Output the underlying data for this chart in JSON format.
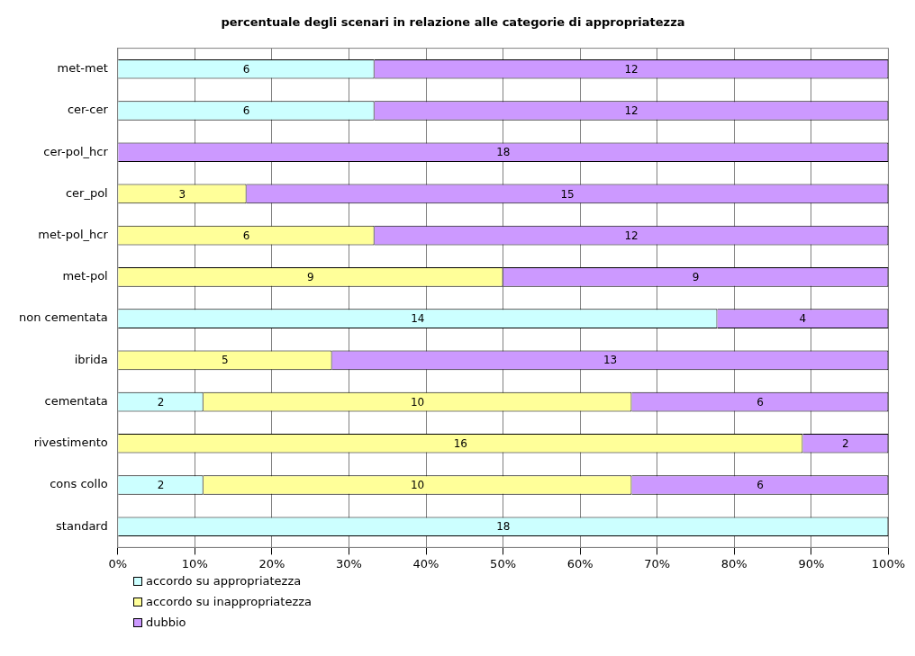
{
  "chart_data": {
    "type": "bar",
    "orientation": "horizontal",
    "stacked": true,
    "title": "percentuale degli scenari in relazione alle categorie di appropriatezza",
    "categories": [
      "met-met",
      "cer-cer",
      "cer-pol_hcr",
      "cer_pol",
      "met-pol_hcr",
      "met-pol",
      "non cementata",
      "ibrida",
      "cementata",
      "rivestimento",
      "cons collo",
      "standard"
    ],
    "series": [
      {
        "name": "accordo su appropriatezza",
        "color": "#ccffff",
        "values": [
          33.3,
          33.3,
          null,
          null,
          null,
          null,
          77.8,
          null,
          11.1,
          null,
          11.1,
          100
        ]
      },
      {
        "name": "accordo su inappropriatezza",
        "color": "#ffff99",
        "values": [
          null,
          null,
          null,
          16.7,
          33.3,
          50,
          null,
          27.8,
          55.6,
          88.9,
          55.6,
          null
        ]
      },
      {
        "name": "dubbio",
        "color": "#cc99ff",
        "values": [
          66.7,
          66.7,
          100,
          83.3,
          66.7,
          50,
          22.2,
          72.2,
          33.3,
          11.1,
          33.3,
          null
        ]
      }
    ],
    "annotations": [
      "6",
      "6",
      "14",
      "2",
      "2",
      "18",
      "3",
      "6",
      "9",
      "5",
      "10",
      "16",
      "10",
      "12",
      "12",
      "18",
      "15",
      "12",
      "9",
      "4",
      "13",
      "6",
      "2",
      "6"
    ],
    "xlim": [
      0,
      100
    ],
    "xticks": [
      {
        "value": 0,
        "label": "0%"
      },
      {
        "value": 10,
        "label": "10%"
      },
      {
        "value": 20,
        "label": "20%"
      },
      {
        "value": 30,
        "label": "30%"
      },
      {
        "value": 40,
        "label": "40%"
      },
      {
        "value": 50,
        "label": "50%"
      },
      {
        "value": 60,
        "label": "60%"
      },
      {
        "value": 70,
        "label": "70%"
      },
      {
        "value": 80,
        "label": "80%"
      },
      {
        "value": 90,
        "label": "90%"
      },
      {
        "value": 100,
        "label": "100%"
      }
    ],
    "grid": "x",
    "legend": "bottom left"
  }
}
